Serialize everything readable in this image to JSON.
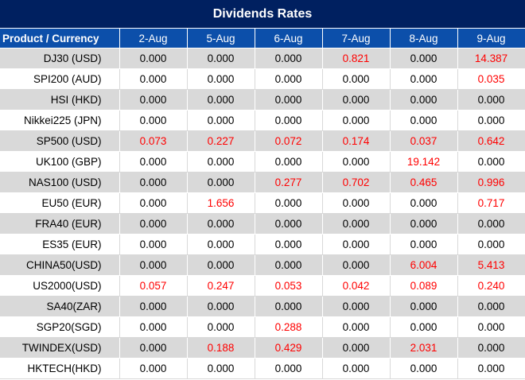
{
  "title": "Dividends Rates",
  "header": [
    "Product / Currency",
    "2-Aug",
    "5-Aug",
    "6-Aug",
    "7-Aug",
    "8-Aug",
    "9-Aug"
  ],
  "colors": {
    "title_bg": "#002060",
    "header_bg": "#0c4faa",
    "positive_value": "#ff0000",
    "stripe": "#d9d9d9"
  },
  "rows": [
    {
      "name": "DJ30 (USD)",
      "values": [
        "0.000",
        "0.000",
        "0.000",
        "0.821",
        "0.000",
        "14.387"
      ]
    },
    {
      "name": "SPI200 (AUD)",
      "values": [
        "0.000",
        "0.000",
        "0.000",
        "0.000",
        "0.000",
        "0.035"
      ]
    },
    {
      "name": "HSI (HKD)",
      "values": [
        "0.000",
        "0.000",
        "0.000",
        "0.000",
        "0.000",
        "0.000"
      ]
    },
    {
      "name": "Nikkei225 (JPN)",
      "values": [
        "0.000",
        "0.000",
        "0.000",
        "0.000",
        "0.000",
        "0.000"
      ]
    },
    {
      "name": "SP500 (USD)",
      "values": [
        "0.073",
        "0.227",
        "0.072",
        "0.174",
        "0.037",
        "0.642"
      ]
    },
    {
      "name": "UK100 (GBP)",
      "values": [
        "0.000",
        "0.000",
        "0.000",
        "0.000",
        "19.142",
        "0.000"
      ]
    },
    {
      "name": "NAS100 (USD)",
      "values": [
        "0.000",
        "0.000",
        "0.277",
        "0.702",
        "0.465",
        "0.996"
      ]
    },
    {
      "name": "EU50 (EUR)",
      "values": [
        "0.000",
        "1.656",
        "0.000",
        "0.000",
        "0.000",
        "0.717"
      ]
    },
    {
      "name": "FRA40 (EUR)",
      "values": [
        "0.000",
        "0.000",
        "0.000",
        "0.000",
        "0.000",
        "0.000"
      ]
    },
    {
      "name": "ES35 (EUR)",
      "values": [
        "0.000",
        "0.000",
        "0.000",
        "0.000",
        "0.000",
        "0.000"
      ]
    },
    {
      "name": "CHINA50(USD)",
      "values": [
        "0.000",
        "0.000",
        "0.000",
        "0.000",
        "6.004",
        "5.413"
      ]
    },
    {
      "name": "US2000(USD)",
      "values": [
        "0.057",
        "0.247",
        "0.053",
        "0.042",
        "0.089",
        "0.240"
      ]
    },
    {
      "name": "SA40(ZAR)",
      "values": [
        "0.000",
        "0.000",
        "0.000",
        "0.000",
        "0.000",
        "0.000"
      ]
    },
    {
      "name": "SGP20(SGD)",
      "values": [
        "0.000",
        "0.000",
        "0.288",
        "0.000",
        "0.000",
        "0.000"
      ]
    },
    {
      "name": "TWINDEX(USD)",
      "values": [
        "0.000",
        "0.188",
        "0.429",
        "0.000",
        "2.031",
        "0.000"
      ]
    },
    {
      "name": "HKTECH(HKD)",
      "values": [
        "0.000",
        "0.000",
        "0.000",
        "0.000",
        "0.000",
        "0.000"
      ]
    }
  ]
}
